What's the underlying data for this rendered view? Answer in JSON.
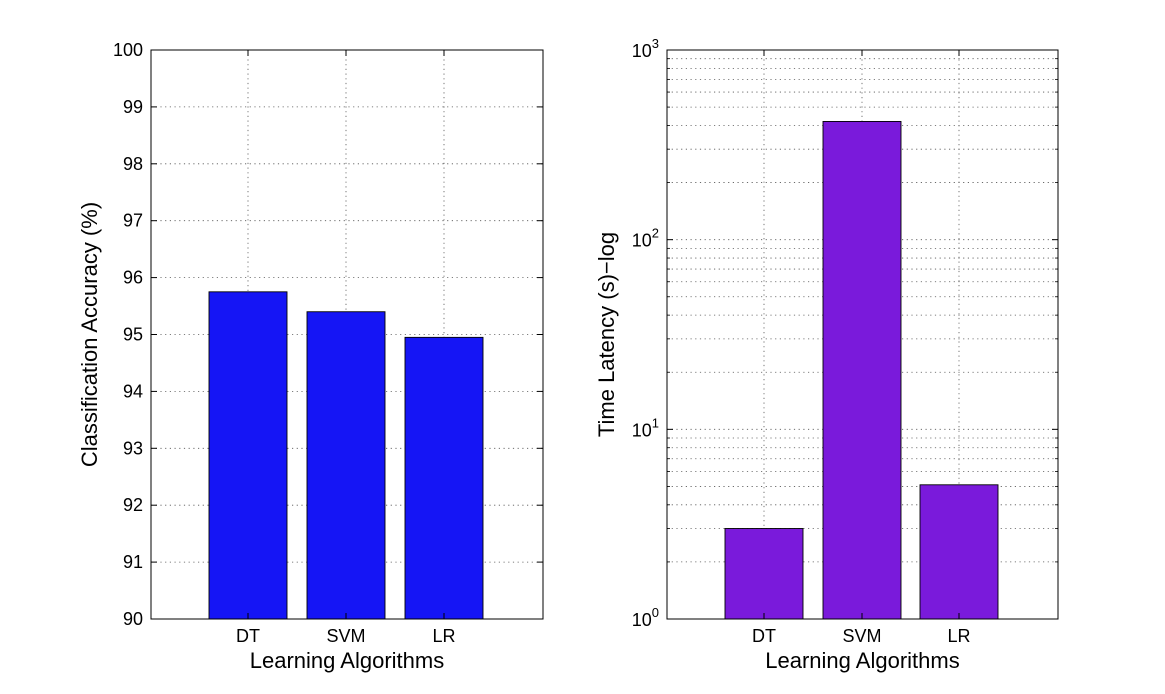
{
  "chart_data": [
    {
      "type": "bar",
      "categories": [
        "DT",
        "SVM",
        "LR"
      ],
      "values": [
        95.75,
        95.4,
        94.95
      ],
      "xlabel": "Learning Algorithms",
      "ylabel": "Classification Accuracy (%)",
      "ylim": [
        90,
        100
      ],
      "yticks": [
        "90",
        "91",
        "92",
        "93",
        "94",
        "95",
        "96",
        "97",
        "98",
        "99",
        "100"
      ],
      "bar_color": "#1515f5",
      "grid": true,
      "scale": "linear"
    },
    {
      "type": "bar",
      "categories": [
        "DT",
        "SVM",
        "LR"
      ],
      "values": [
        3,
        420,
        5.1
      ],
      "xlabel": "Learning Algorithms",
      "ylabel": "Time Latency (s)−log",
      "ylim": [
        1,
        1000
      ],
      "yticks": [
        "10^0",
        "10^1",
        "10^2",
        "10^3"
      ],
      "bar_color": "#7a1adb",
      "grid": true,
      "scale": "log"
    }
  ]
}
